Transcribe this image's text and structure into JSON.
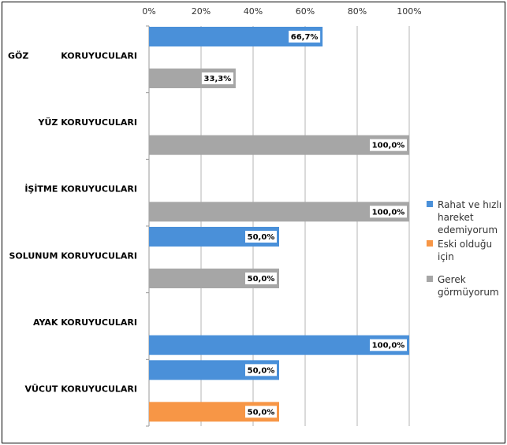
{
  "chart_data": {
    "type": "bar",
    "orientation": "horizontal",
    "x_ticks": [
      "0%",
      "20%",
      "40%",
      "60%",
      "80%",
      "100%"
    ],
    "xlim": [
      0,
      100
    ],
    "grid": true,
    "legend_position": "right",
    "groups": [
      {
        "category": "GÖZ KORUYUCULARI",
        "label_left": "GÖZ",
        "label_right": "KORUYUCULARI",
        "bars": [
          {
            "series": "Rahat ve hızlı hareket edemiyorum",
            "value": 66.7,
            "label": "66,7%"
          },
          {
            "series": "Gerek görmüyorum",
            "value": 33.3,
            "label": "33,3%"
          }
        ]
      },
      {
        "category": "YÜZ KORUYUCULARI",
        "bars": [
          {
            "series": "Gerek görmüyorum",
            "value": 100.0,
            "label": "100,0%"
          }
        ]
      },
      {
        "category": "İŞİTME KORUYUCULARI",
        "bars": [
          {
            "series": "Gerek görmüyorum",
            "value": 100.0,
            "label": "100,0%"
          }
        ]
      },
      {
        "category": "SOLUNUM KORUYUCULARI",
        "bars": [
          {
            "series": "Rahat ve hızlı hareket edemiyorum",
            "value": 50.0,
            "label": "50,0%"
          },
          {
            "series": "Gerek görmüyorum",
            "value": 50.0,
            "label": "50,0%"
          }
        ]
      },
      {
        "category": "AYAK KORUYUCULARI",
        "bars": [
          {
            "series": "Rahat ve hızlı hareket edemiyorum",
            "value": 100.0,
            "label": "100,0%"
          }
        ]
      },
      {
        "category": "VÜCUT KORUYUCULARI",
        "bars": [
          {
            "series": "Rahat ve hızlı hareket edemiyorum",
            "value": 50.0,
            "label": "50,0%"
          },
          {
            "series": "Eski olduğu için",
            "value": 50.0,
            "label": "50,0%"
          }
        ]
      }
    ],
    "series": [
      {
        "name": "Rahat ve hızlı hareket edemiyorum",
        "color": "#4a90d9"
      },
      {
        "name": "Eski olduğu için",
        "color": "#f79646"
      },
      {
        "name": "Gerek görmüyorum",
        "color": "#a6a6a6"
      }
    ]
  },
  "legend": [
    {
      "label": "Rahat ve hızlı hareket edemiyorum",
      "color": "#4a90d9"
    },
    {
      "label": "Eski olduğu için",
      "color": "#f79646"
    },
    {
      "label": "Gerek görmüyorum",
      "color": "#a6a6a6"
    }
  ]
}
